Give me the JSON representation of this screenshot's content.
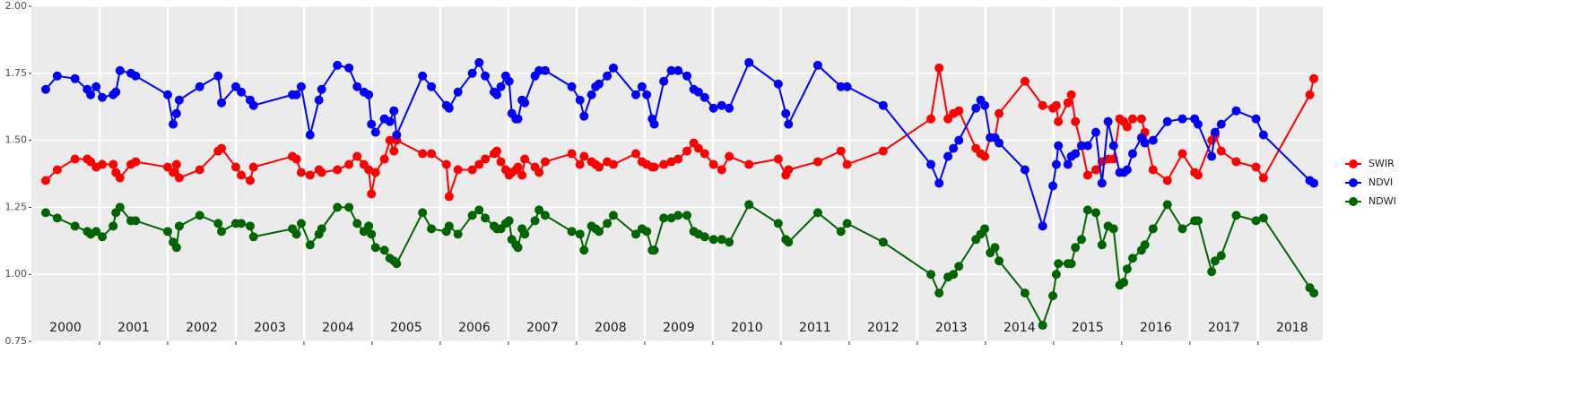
{
  "chart_data": {
    "type": "line",
    "x": [
      2000.21,
      2000.38,
      2000.64,
      2000.82,
      2000.87,
      2000.95,
      2001.04,
      2001.2,
      2001.24,
      2001.3,
      2001.46,
      2001.53,
      2002.0,
      2002.08,
      2002.13,
      2002.17,
      2002.47,
      2002.74,
      2002.79,
      2003.0,
      2003.08,
      2003.21,
      2003.26,
      2003.83,
      2003.89,
      2003.96,
      2004.09,
      2004.22,
      2004.26,
      2004.49,
      2004.66,
      2004.78,
      2004.88,
      2004.95,
      2004.99,
      2005.05,
      2005.18,
      2005.26,
      2005.32,
      2005.36,
      2005.74,
      2005.87,
      2006.09,
      2006.13,
      2006.26,
      2006.47,
      2006.57,
      2006.66,
      2006.79,
      2006.83,
      2006.89,
      2006.96,
      2007.01,
      2007.05,
      2007.11,
      2007.14,
      2007.2,
      2007.24,
      2007.39,
      2007.45,
      2007.54,
      2007.93,
      2008.05,
      2008.11,
      2008.22,
      2008.28,
      2008.33,
      2008.45,
      2008.54,
      2008.87,
      2008.96,
      2009.03,
      2009.11,
      2009.14,
      2009.28,
      2009.39,
      2009.49,
      2009.62,
      2009.72,
      2009.79,
      2009.88,
      2010.01,
      2010.13,
      2010.24,
      2010.53,
      2010.96,
      2011.07,
      2011.11,
      2011.54,
      2011.88,
      2011.97,
      2012.5,
      2013.2,
      2013.32,
      2013.45,
      2013.53,
      2013.61,
      2013.86,
      2013.93,
      2013.99,
      2014.07,
      2014.14,
      2014.2,
      2014.58,
      2014.84,
      2014.99,
      2015.04,
      2015.07,
      2015.21,
      2015.26,
      2015.32,
      2015.41,
      2015.5,
      2015.62,
      2015.71,
      2015.8,
      2015.88,
      2015.97,
      2016.03,
      2016.08,
      2016.16,
      2016.29,
      2016.34,
      2016.46,
      2016.67,
      2016.89,
      2017.07,
      2017.12,
      2017.32,
      2017.37,
      2017.46,
      2017.68,
      2017.97,
      2018.08,
      2018.76,
      2018.82
    ],
    "series": [
      {
        "name": "SWIR",
        "color": "#ff0000",
        "values": [
          1.35,
          1.39,
          1.43,
          1.43,
          1.42,
          1.4,
          1.41,
          1.41,
          1.38,
          1.36,
          1.41,
          1.42,
          1.4,
          1.38,
          1.41,
          1.36,
          1.39,
          1.46,
          1.47,
          1.4,
          1.37,
          1.35,
          1.4,
          1.44,
          1.43,
          1.38,
          1.37,
          1.39,
          1.38,
          1.39,
          1.41,
          1.44,
          1.41,
          1.39,
          1.3,
          1.38,
          1.43,
          1.5,
          1.46,
          1.5,
          1.45,
          1.45,
          1.41,
          1.29,
          1.39,
          1.39,
          1.41,
          1.43,
          1.45,
          1.46,
          1.42,
          1.39,
          1.37,
          1.38,
          1.39,
          1.4,
          1.37,
          1.43,
          1.4,
          1.38,
          1.42,
          1.45,
          1.41,
          1.44,
          1.42,
          1.41,
          1.4,
          1.42,
          1.41,
          1.45,
          1.42,
          1.41,
          1.4,
          1.4,
          1.41,
          1.42,
          1.43,
          1.46,
          1.49,
          1.47,
          1.45,
          1.41,
          1.39,
          1.44,
          1.41,
          1.43,
          1.37,
          1.39,
          1.42,
          1.46,
          1.41,
          1.46,
          1.58,
          1.77,
          1.58,
          1.6,
          1.61,
          1.47,
          1.45,
          1.44,
          1.51,
          1.51,
          1.6,
          1.72,
          1.63,
          1.62,
          1.63,
          1.57,
          1.64,
          1.67,
          1.57,
          1.48,
          1.37,
          1.39,
          1.42,
          1.43,
          1.43,
          1.58,
          1.57,
          1.55,
          1.58,
          1.58,
          1.53,
          1.39,
          1.35,
          1.45,
          1.38,
          1.37,
          1.5,
          1.52,
          1.46,
          1.42,
          1.4,
          1.36,
          1.67,
          1.73
        ]
      },
      {
        "name": "NDVI",
        "color": "#0000ff",
        "values": [
          1.69,
          1.74,
          1.73,
          1.69,
          1.67,
          1.7,
          1.66,
          1.67,
          1.68,
          1.76,
          1.75,
          1.74,
          1.67,
          1.56,
          1.6,
          1.65,
          1.7,
          1.74,
          1.64,
          1.7,
          1.68,
          1.65,
          1.63,
          1.67,
          1.67,
          1.7,
          1.52,
          1.65,
          1.69,
          1.78,
          1.77,
          1.7,
          1.68,
          1.67,
          1.56,
          1.53,
          1.58,
          1.57,
          1.61,
          1.52,
          1.74,
          1.7,
          1.63,
          1.62,
          1.68,
          1.75,
          1.79,
          1.74,
          1.68,
          1.67,
          1.7,
          1.74,
          1.72,
          1.6,
          1.58,
          1.58,
          1.65,
          1.64,
          1.74,
          1.76,
          1.76,
          1.7,
          1.65,
          1.59,
          1.67,
          1.7,
          1.71,
          1.74,
          1.77,
          1.67,
          1.7,
          1.67,
          1.58,
          1.56,
          1.72,
          1.76,
          1.76,
          1.74,
          1.69,
          1.68,
          1.66,
          1.62,
          1.63,
          1.62,
          1.79,
          1.71,
          1.6,
          1.56,
          1.78,
          1.7,
          1.7,
          1.63,
          1.41,
          1.34,
          1.44,
          1.47,
          1.5,
          1.62,
          1.65,
          1.63,
          1.51,
          1.51,
          1.49,
          1.39,
          1.18,
          1.33,
          1.41,
          1.48,
          1.41,
          1.44,
          1.45,
          1.48,
          1.48,
          1.53,
          1.34,
          1.57,
          1.48,
          1.38,
          1.38,
          1.39,
          1.45,
          1.51,
          1.49,
          1.5,
          1.57,
          1.58,
          1.58,
          1.56,
          1.44,
          1.53,
          1.56,
          1.61,
          1.58,
          1.52,
          1.35,
          1.34
        ]
      },
      {
        "name": "NDWI",
        "color": "#006400",
        "values": [
          1.23,
          1.21,
          1.18,
          1.16,
          1.15,
          1.16,
          1.14,
          1.18,
          1.23,
          1.25,
          1.2,
          1.2,
          1.16,
          1.12,
          1.1,
          1.18,
          1.22,
          1.19,
          1.16,
          1.19,
          1.19,
          1.18,
          1.14,
          1.17,
          1.15,
          1.19,
          1.11,
          1.15,
          1.17,
          1.25,
          1.25,
          1.19,
          1.16,
          1.18,
          1.15,
          1.1,
          1.09,
          1.06,
          1.05,
          1.04,
          1.23,
          1.17,
          1.16,
          1.18,
          1.15,
          1.22,
          1.24,
          1.21,
          1.18,
          1.17,
          1.17,
          1.19,
          1.2,
          1.13,
          1.11,
          1.1,
          1.17,
          1.15,
          1.2,
          1.24,
          1.22,
          1.16,
          1.15,
          1.09,
          1.18,
          1.17,
          1.16,
          1.19,
          1.22,
          1.15,
          1.17,
          1.16,
          1.09,
          1.09,
          1.21,
          1.21,
          1.22,
          1.22,
          1.16,
          1.15,
          1.14,
          1.13,
          1.13,
          1.12,
          1.26,
          1.19,
          1.13,
          1.12,
          1.23,
          1.16,
          1.19,
          1.12,
          1.0,
          0.93,
          0.99,
          1.0,
          1.03,
          1.13,
          1.15,
          1.17,
          1.08,
          1.1,
          1.05,
          0.93,
          0.81,
          0.92,
          1.0,
          1.04,
          1.04,
          1.04,
          1.1,
          1.13,
          1.24,
          1.23,
          1.11,
          1.18,
          1.17,
          0.96,
          0.97,
          1.02,
          1.06,
          1.09,
          1.11,
          1.17,
          1.26,
          1.17,
          1.2,
          1.2,
          1.01,
          1.05,
          1.07,
          1.22,
          1.2,
          1.21,
          0.95,
          0.93
        ]
      }
    ],
    "xlim": [
      2000,
      2018.95
    ],
    "xticks": [
      2001,
      2002,
      2003,
      2004,
      2005,
      2006,
      2007,
      2008,
      2009,
      2010,
      2011,
      2012,
      2013,
      2014,
      2015,
      2016,
      2017,
      2018
    ],
    "year_labels": [
      "2000",
      "2001",
      "2002",
      "2003",
      "2004",
      "2005",
      "2006",
      "2007",
      "2008",
      "2009",
      "2010",
      "2011",
      "2012",
      "2013",
      "2014",
      "2015",
      "2016",
      "2017",
      "2018"
    ],
    "ylim": [
      0.75,
      2.0
    ],
    "yticks": [
      0.75,
      {
        "value": 1.0,
        "label": "1.00"
      },
      1.25,
      {
        "value": 1.5,
        "label": "1.50"
      },
      1.75,
      {
        "value": 2.0,
        "label": "2.00"
      }
    ],
    "grid": true,
    "legend": "right"
  }
}
